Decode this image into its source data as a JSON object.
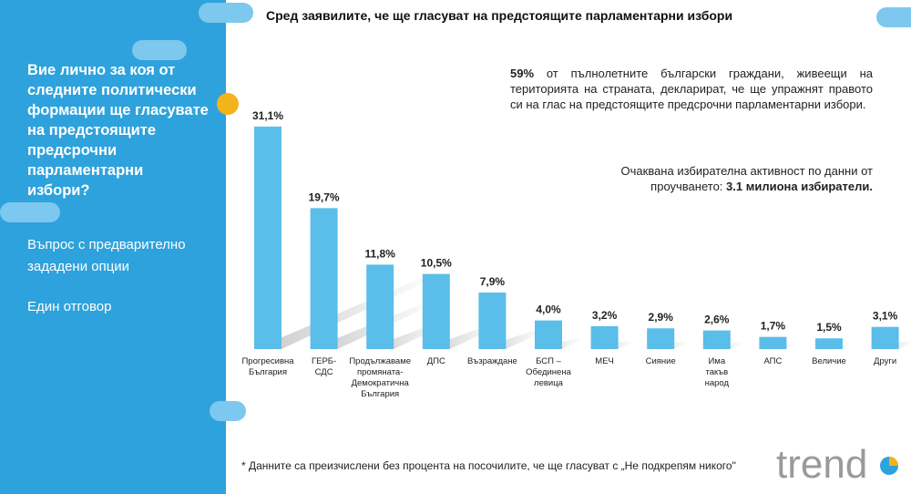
{
  "left_panel": {
    "question": "Вие лично за коя от следните политически формации ще гласувате на предстоящите предсрочни парламентарни избори?",
    "question_type": "Въпрос с предварително зададени опции",
    "answer_type": "Един отговор"
  },
  "chart_data": {
    "type": "bar",
    "title": "Сред заявилите, че ще гласуват на предстоящите парламентарни избори",
    "categories": [
      "Прогресивна България",
      "ГЕРБ-СДС",
      "Продължаваме промяната-Демократична България",
      "ДПС",
      "Възраждане",
      "БСП – Обединена левица",
      "МЕЧ",
      "Сияние",
      "Има такъв народ",
      "АПС",
      "Величие",
      "Други"
    ],
    "category_lines": [
      [
        "Прогресивна",
        "България"
      ],
      [
        "ГЕРБ-",
        "СДС"
      ],
      [
        "Продължаваме",
        "промяната-",
        "Демократична",
        "България"
      ],
      [
        "ДПС"
      ],
      [
        "Възраждане"
      ],
      [
        "БСП –",
        "Обединена",
        "левица"
      ],
      [
        "МЕЧ"
      ],
      [
        "Сияние"
      ],
      [
        "Има",
        "такъв",
        "народ"
      ],
      [
        "АПС"
      ],
      [
        "Величие"
      ],
      [
        "Други"
      ]
    ],
    "values": [
      31.1,
      19.7,
      11.8,
      10.5,
      7.9,
      4.0,
      3.2,
      2.9,
      2.6,
      1.7,
      1.5,
      3.1
    ],
    "value_labels": [
      "31,1%",
      "19,7%",
      "11,8%",
      "10,5%",
      "7,9%",
      "4,0%",
      "3,2%",
      "2,9%",
      "2,6%",
      "1,7%",
      "1,5%",
      "3,1%"
    ],
    "unit": "%",
    "grid": false,
    "legend": "none",
    "colors": {
      "bar": "#5bbde9",
      "panel": "#2ea2dc",
      "accent": "#f4b31a"
    }
  },
  "notes": {
    "turnout_pct": "59%",
    "turnout_text": " от пълнолетните български граждани, живеещи на територията на страната, декларират, че ще упражнят правото си на глас на предстоящите предсрочни парламентарни избори.",
    "activity_text": "Очаквана избирателна активност по данни от проучването: ",
    "activity_value": "3.1 милиона избиратели."
  },
  "footnote": "* Данните са преизчислени без процента на посочилите, че ще гласуват с „Не подкрепям никого\"",
  "logo": {
    "text": "trend"
  }
}
